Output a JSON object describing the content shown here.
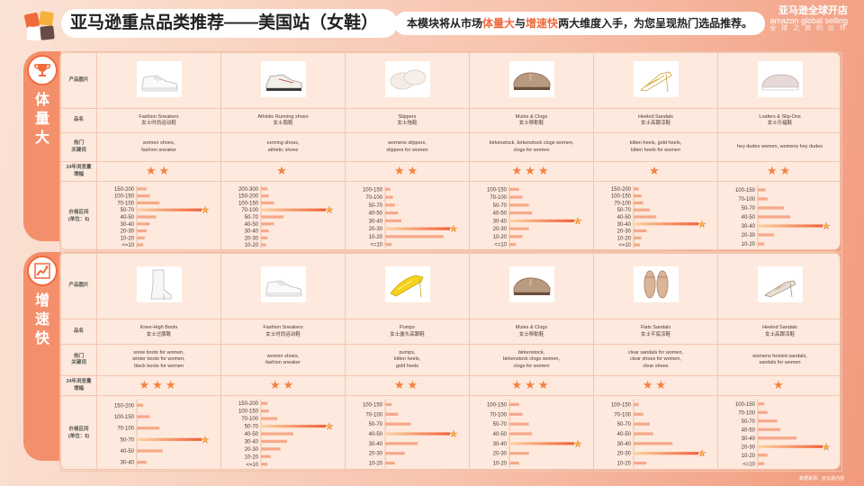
{
  "page": {
    "title": "亚马逊重点品类推荐——美国站（女鞋）",
    "intro": {
      "before": "本模块将从市场",
      "hl1": "体量大",
      "mid": "与",
      "hl2": "增速快",
      "after": "两大维度入手，为您呈现热门选品推荐。"
    },
    "brand": {
      "line1": "亚马逊全球开店",
      "line2": "amazon global selling",
      "line3": "开 启 全 球 之 旅 的 伙 伴"
    },
    "source": "数据来源：亚马逊内部",
    "logo_colors": [
      "#f06a3c",
      "#f7b23a",
      "#ffffff",
      "#6a4a46"
    ]
  },
  "row_labels": {
    "image": "产品图片",
    "name": "品名",
    "keywords": "热门\n关键词",
    "growth": "24年浏览量\n增幅",
    "price": "价格区间\n(单位：$)"
  },
  "colors": {
    "bar_start": "#fcd3a2",
    "bar_end": "#f1613a",
    "star": "#f6b93b",
    "accent": "#f06a3c"
  },
  "sections": [
    {
      "name": "体量大",
      "icon": "trophy-icon",
      "products": [
        {
          "name": "Fashion Sneakers",
          "name_cn": "女士时尚运动鞋",
          "image": "white-sneaker",
          "keywords": "women shoes,\nfashion sneaker",
          "stars": 2,
          "chart_data": {
            "type": "bar",
            "orientation": "horizontal",
            "categories": [
              "150-200",
              "100-150",
              "70-100",
              "50-70",
              "40-50",
              "30-40",
              "20-30",
              "10-20",
              "<=10"
            ],
            "values": [
              0.15,
              0.2,
              0.35,
              1.0,
              0.3,
              0.2,
              0.15,
              0.12,
              0.1
            ],
            "highlight": "50-70"
          }
        },
        {
          "name": "Athletic Running shoes",
          "name_cn": "女士跑鞋",
          "image": "running-shoe",
          "keywords": "running shoes,\nathletic shoes",
          "stars": 1,
          "chart_data": {
            "type": "bar",
            "orientation": "horizontal",
            "categories": [
              "200-300",
              "150-200",
              "100-150",
              "70-100",
              "50-70",
              "40-50",
              "30-40",
              "20-30",
              "10-20"
            ],
            "values": [
              0.1,
              0.12,
              0.2,
              1.0,
              0.35,
              0.2,
              0.12,
              0.1,
              0.08
            ],
            "highlight": "70-100"
          }
        },
        {
          "name": "Slippers",
          "name_cn": "女士拖鞋",
          "image": "fuzzy-slipper",
          "keywords": "womens slippers,\nslippers for women",
          "stars": 2,
          "chart_data": {
            "type": "bar",
            "orientation": "horizontal",
            "categories": [
              "100-150",
              "70-100",
              "50-70",
              "40-50",
              "30-40",
              "20-30",
              "10-20",
              "<=10"
            ],
            "values": [
              0.08,
              0.12,
              0.15,
              0.2,
              0.25,
              1.0,
              0.9,
              0.1
            ],
            "highlight": "20-30"
          }
        },
        {
          "name": "Mules & Clogs",
          "name_cn": "女士穆勒鞋",
          "image": "clog",
          "keywords": "birkenstock, birkenstock clogs women,\nclogs for women",
          "stars": 3,
          "chart_data": {
            "type": "bar",
            "orientation": "horizontal",
            "categories": [
              "100-150",
              "70-100",
              "50-70",
              "40-50",
              "30-40",
              "20-30",
              "10-20",
              "<=10"
            ],
            "values": [
              0.15,
              0.2,
              0.3,
              0.35,
              1.0,
              0.3,
              0.2,
              0.1
            ],
            "highlight": "30-40"
          }
        },
        {
          "name": "Heeled Sandals",
          "name_cn": "女士高跟凉鞋",
          "image": "gold-heel-sandal",
          "keywords": "kitten heels, gold heels,\nkitten heels for women",
          "stars": 1,
          "chart_data": {
            "type": "bar",
            "orientation": "horizontal",
            "categories": [
              "150-200",
              "100-150",
              "70-100",
              "50-70",
              "40-50",
              "30-40",
              "20-30",
              "10-20",
              "<=10"
            ],
            "values": [
              0.08,
              0.12,
              0.15,
              0.25,
              0.35,
              1.0,
              0.2,
              0.12,
              0.1
            ],
            "highlight": "30-40"
          }
        },
        {
          "name": "Loafers & Slip-Ons",
          "name_cn": "女士乐福鞋",
          "image": "slip-on",
          "keywords": "hey dudes women, womens hey dudes",
          "stars": 2,
          "chart_data": {
            "type": "bar",
            "orientation": "horizontal",
            "categories": [
              "100-150",
              "70-100",
              "50-70",
              "40-50",
              "30-40",
              "20-30",
              "10-20"
            ],
            "values": [
              0.12,
              0.15,
              0.4,
              0.5,
              1.0,
              0.25,
              0.1
            ],
            "highlight": "30-40"
          }
        }
      ]
    },
    {
      "name": "增速快",
      "icon": "growth-chart-icon",
      "products": [
        {
          "name": "Knee-High Boots",
          "name_cn": "女士过膝靴",
          "image": "white-boot",
          "keywords": "snow boots for women,\nwinter boots for women,\nblack boots for women",
          "stars": 3,
          "chart_data": {
            "type": "bar",
            "orientation": "horizontal",
            "categories": [
              "150-200",
              "100-150",
              "70-100",
              "50-70",
              "40-50",
              "30-40"
            ],
            "values": [
              0.1,
              0.2,
              0.35,
              1.0,
              0.4,
              0.15
            ],
            "highlight": "50-70"
          }
        },
        {
          "name": "Fashion Sneakers",
          "name_cn": "女士时尚运动鞋",
          "image": "white-sneaker-2",
          "keywords": "women shoes,\nfashion sneaker",
          "stars": 2,
          "chart_data": {
            "type": "bar",
            "orientation": "horizontal",
            "categories": [
              "150-200",
              "100-150",
              "70-100",
              "50-70",
              "40-50",
              "30-40",
              "20-30",
              "10-20",
              "<=10"
            ],
            "values": [
              0.1,
              0.12,
              0.25,
              1.0,
              0.5,
              0.4,
              0.3,
              0.15,
              0.1
            ],
            "highlight": "50-70"
          }
        },
        {
          "name": "Pumps",
          "name_cn": "女士露头高跟鞋",
          "image": "yellow-pump",
          "keywords": "pumps,\nkitten heels,\ngold heels",
          "stars": 2,
          "chart_data": {
            "type": "bar",
            "orientation": "horizontal",
            "categories": [
              "100-150",
              "70-100",
              "50-70",
              "40-50",
              "30-40",
              "20-30",
              "10-20"
            ],
            "values": [
              0.1,
              0.2,
              0.4,
              1.0,
              0.5,
              0.3,
              0.15
            ],
            "highlight": "40-50"
          }
        },
        {
          "name": "Mules & Clogs",
          "name_cn": "女士穆勒鞋",
          "image": "clog-2",
          "keywords": "birkenstock,\nbirkenstock clogs women,\nclogs for women",
          "stars": 3,
          "chart_data": {
            "type": "bar",
            "orientation": "horizontal",
            "categories": [
              "100-150",
              "70-100",
              "50-70",
              "40-50",
              "30-40",
              "20-30",
              "10-20"
            ],
            "values": [
              0.15,
              0.2,
              0.3,
              0.35,
              1.0,
              0.3,
              0.15
            ],
            "highlight": "30-40"
          }
        },
        {
          "name": "Flats Sandals",
          "name_cn": "女士平底凉鞋",
          "image": "flat-sandal",
          "keywords": "clear sandals for women,\nclear shoes for women,\nclear shoes",
          "stars": 2,
          "chart_data": {
            "type": "bar",
            "orientation": "horizontal",
            "categories": [
              "100-150",
              "70-100",
              "50-70",
              "40-50",
              "30-40",
              "20-30",
              "10-20"
            ],
            "values": [
              0.08,
              0.15,
              0.25,
              0.3,
              0.6,
              1.0,
              0.2
            ],
            "highlight": "20-30"
          }
        },
        {
          "name": "Heeled Sandals",
          "name_cn": "女士高跟凉鞋",
          "image": "heel-sandal",
          "keywords": "womens heeled sandals,\nsandals for women",
          "stars": 1,
          "chart_data": {
            "type": "bar",
            "orientation": "horizontal",
            "categories": [
              "100-150",
              "70-100",
              "50-70",
              "40-50",
              "30-40",
              "20-30",
              "10-20",
              "<=10"
            ],
            "values": [
              0.1,
              0.15,
              0.3,
              0.35,
              0.6,
              1.0,
              0.15,
              0.1
            ],
            "highlight": "20-30"
          }
        }
      ]
    }
  ]
}
